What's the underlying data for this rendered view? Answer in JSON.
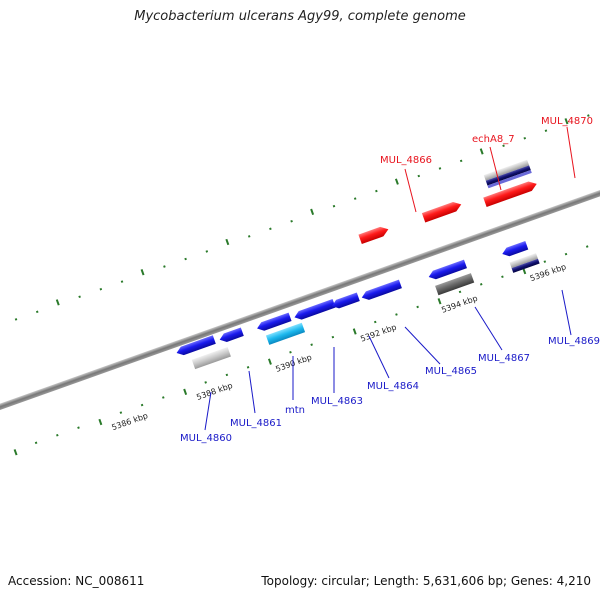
{
  "title": "Mycobacterium ulcerans Agy99, complete genome",
  "footer": {
    "accession": "Accession: NC_008611",
    "summary": "Topology: circular; Length: 5,631,606 bp; Genes: 4,210"
  },
  "colors": {
    "plus_strand_gene": "#ff2020",
    "minus_strand_gene": "#1a1aee",
    "tick": "#2a7a2a",
    "backbone": "#8a8a8a"
  },
  "scale_labels": [
    {
      "text": "5386 kbp"
    },
    {
      "text": "5388 kbp"
    },
    {
      "text": "5390 kbp"
    },
    {
      "text": "5392 kbp"
    },
    {
      "text": "5394 kbp"
    },
    {
      "text": "5396 kbp"
    }
  ],
  "gene_labels": [
    {
      "text": "MUL_4866",
      "strand": "plus",
      "color": "#e8141e"
    },
    {
      "text": "echA8_7",
      "strand": "plus",
      "color": "#e8141e"
    },
    {
      "text": "MUL_4870",
      "strand": "plus",
      "color": "#e8141e"
    },
    {
      "text": "MUL_4860",
      "strand": "minus",
      "color": "#1a1ac8"
    },
    {
      "text": "MUL_4861",
      "strand": "minus",
      "color": "#1a1ac8"
    },
    {
      "text": "mtn",
      "strand": "minus",
      "color": "#1a1ac8"
    },
    {
      "text": "MUL_4863",
      "strand": "minus",
      "color": "#1a1ac8"
    },
    {
      "text": "MUL_4864",
      "strand": "minus",
      "color": "#1a1ac8"
    },
    {
      "text": "MUL_4865",
      "strand": "minus",
      "color": "#1a1ac8"
    },
    {
      "text": "MUL_4867",
      "strand": "minus",
      "color": "#1a1ac8"
    },
    {
      "text": "MUL_4869",
      "strand": "minus",
      "color": "#1a1ac8"
    }
  ]
}
